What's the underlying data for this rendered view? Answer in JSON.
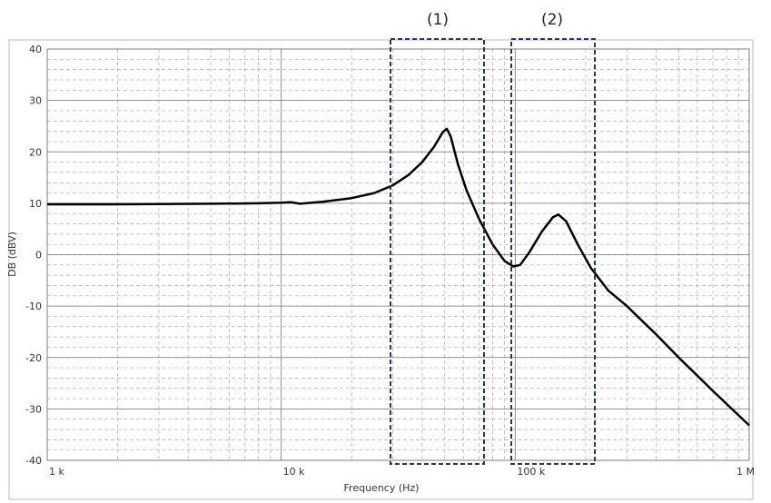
{
  "chart_data": {
    "type": "line",
    "x_label": "Frequency (Hz)",
    "y_label": "DB (dBV)",
    "annotations": [
      "(1)",
      "(2)"
    ],
    "log_x": true,
    "grid": true,
    "xlim": [
      1000,
      1000000
    ],
    "xticks": [
      {
        "value": 1000,
        "label": "1 k"
      },
      {
        "value": 10000,
        "label": "10 k"
      },
      {
        "value": 100000,
        "label": "100 k"
      },
      {
        "value": 1000000,
        "label": "1 M"
      }
    ],
    "ylim": [
      -40,
      40
    ],
    "yticks": [
      -40,
      -30,
      -20,
      -10,
      0,
      10,
      20,
      30,
      40
    ],
    "series": [
      {
        "color": "#000000",
        "x": [
          1000,
          2000,
          5000,
          8000,
          10000,
          11000,
          12000,
          15000,
          20000,
          25000,
          30000,
          35000,
          40000,
          45000,
          49000,
          51000,
          53000,
          57000,
          62000,
          70000,
          80000,
          90000,
          98000,
          105000,
          115000,
          130000,
          145000,
          153000,
          165000,
          185000,
          210000,
          250000,
          300000,
          400000,
          500000,
          700000,
          1000000
        ],
        "values": [
          9.8,
          9.8,
          9.9,
          10.0,
          10.1,
          10.2,
          9.9,
          10.3,
          11.0,
          12.0,
          13.5,
          15.5,
          18.0,
          21.0,
          23.8,
          24.5,
          23.0,
          17.5,
          12.5,
          7.0,
          2.0,
          -1.2,
          -2.3,
          -2.0,
          0.5,
          4.5,
          7.3,
          7.8,
          6.5,
          2.0,
          -2.5,
          -7.0,
          -10.0,
          -15.5,
          -20.0,
          -26.5,
          -33.2
        ]
      }
    ]
  }
}
